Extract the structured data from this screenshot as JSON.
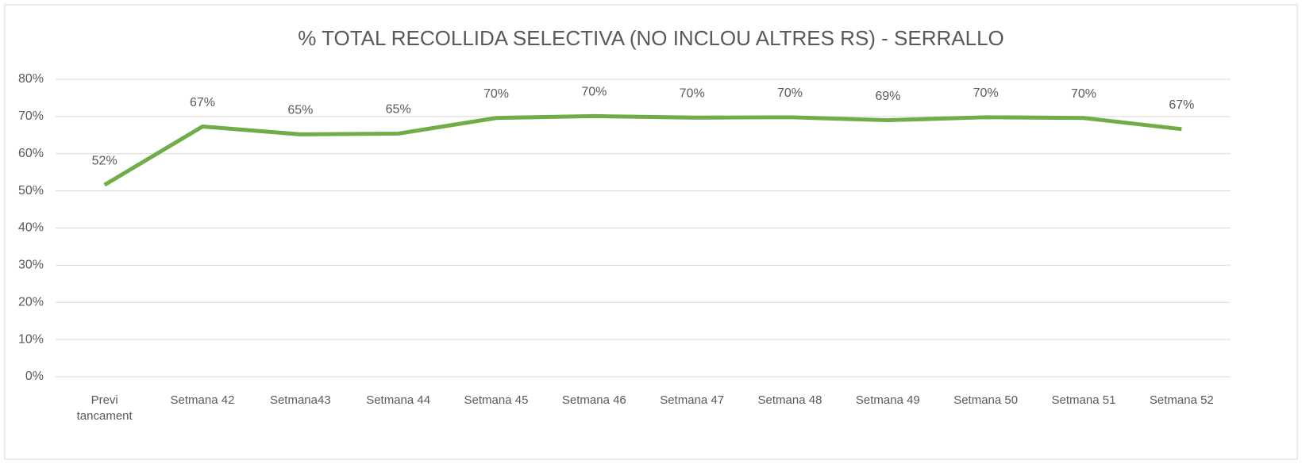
{
  "chart_data": {
    "type": "line",
    "title": "% TOTAL RECOLLIDA SELECTIVA (NO INCLOU ALTRES RS) - SERRALLO",
    "categories": [
      "Previ tancament",
      "Setmana 42",
      "Setmana43",
      "Setmana 44",
      "Setmana 45",
      "Setmana 46",
      "Setmana 47",
      "Setmana 48",
      "Setmana 49",
      "Setmana 50",
      "Setmana 51",
      "Setmana 52"
    ],
    "series": [
      {
        "name": "% TOTAL RECOLLIDA SELECTIVA",
        "color": "#70ad47",
        "values": [
          51.6,
          67.3,
          65.2,
          65.4,
          69.6,
          70.1,
          69.7,
          69.8,
          69.0,
          69.8,
          69.6,
          66.6
        ],
        "value_labels": [
          "52%",
          "67%",
          "65%",
          "65%",
          "70%",
          "70%",
          "70%",
          "70%",
          "69%",
          "70%",
          "70%",
          "67%"
        ]
      }
    ],
    "ylim": [
      0,
      80
    ],
    "yticks": [
      {
        "value": 0,
        "label": "0%"
      },
      {
        "value": 10,
        "label": "10%"
      },
      {
        "value": 20,
        "label": "20%"
      },
      {
        "value": 30,
        "label": "30%"
      },
      {
        "value": 40,
        "label": "40%"
      },
      {
        "value": 50,
        "label": "50%"
      },
      {
        "value": 60,
        "label": "60%"
      },
      {
        "value": 70,
        "label": "70%"
      },
      {
        "value": 80,
        "label": "80%"
      }
    ],
    "grid": true
  }
}
